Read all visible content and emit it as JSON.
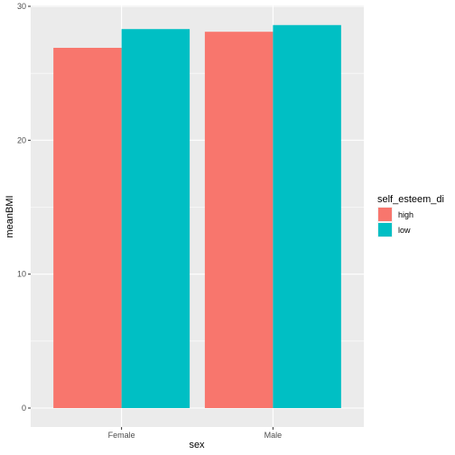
{
  "chart_data": {
    "type": "bar",
    "categories": [
      "Female",
      "Male"
    ],
    "series": [
      {
        "name": "high",
        "values": [
          26.9,
          28.1
        ],
        "color": "#F8766D"
      },
      {
        "name": "low",
        "values": [
          28.3,
          28.6
        ],
        "color": "#00BFC4"
      }
    ],
    "xlabel": "sex",
    "ylabel": "meanBMI",
    "ylim": [
      0,
      30
    ],
    "yticks": [
      0,
      10,
      20,
      30
    ],
    "legend_title": "self_esteem_di",
    "legend_position": "right",
    "grid": true,
    "panel_background": "#EBEBEB",
    "gridline_color": "#FFFFFF"
  }
}
